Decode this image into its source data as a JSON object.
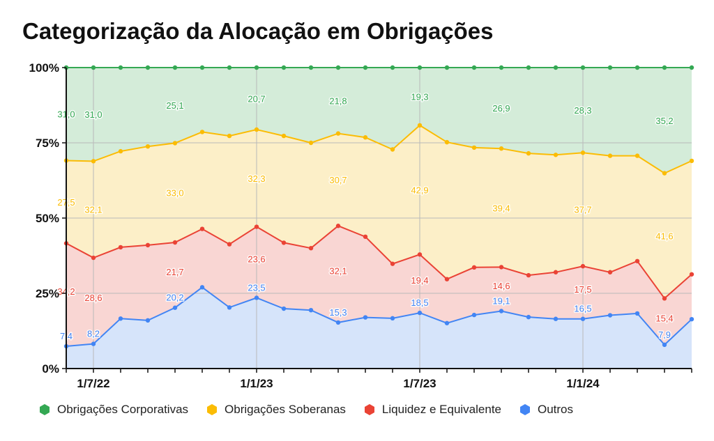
{
  "chart_data": {
    "type": "area",
    "stacked": true,
    "normalized": true,
    "title": "Categorização da Alocação em Obrigações",
    "y_ticks": [
      "0%",
      "25%",
      "50%",
      "75%",
      "100%"
    ],
    "ylim": [
      0,
      100
    ],
    "x_ticks": [
      {
        "label": "1/7/22",
        "index": 1
      },
      {
        "label": "1/1/23",
        "index": 7
      },
      {
        "label": "1/7/23",
        "index": 13
      },
      {
        "label": "1/1/24",
        "index": 19
      }
    ],
    "grid": true,
    "legend_position": "bottom",
    "series": [
      {
        "name": "Outros",
        "color": "#4285F4",
        "fill": "#d6e4fa",
        "values": [
          7.4,
          8.2,
          16.6,
          16.0,
          20.2,
          27.0,
          20.3,
          23.5,
          19.9,
          19.4,
          15.3,
          17.0,
          16.7,
          18.5,
          15.1,
          17.8,
          19.1,
          17.1,
          16.5,
          16.5,
          17.7,
          18.3,
          7.9,
          16.4
        ],
        "labels": {
          "0": "7,4",
          "1": "8,2",
          "4": "20,2",
          "7": "23,5",
          "10": "15,3",
          "13": "18,5",
          "16": "19,1",
          "19": "16,5",
          "22": "7,9"
        }
      },
      {
        "name": "Liquidez e Equivalente",
        "color": "#EA4335",
        "fill": "#f9d6d3",
        "values": [
          34.2,
          28.6,
          23.7,
          25.0,
          21.7,
          19.4,
          21.0,
          23.6,
          21.9,
          20.6,
          32.1,
          26.8,
          18.1,
          19.4,
          14.6,
          15.8,
          14.6,
          13.9,
          15.5,
          17.5,
          14.3,
          17.4,
          15.4,
          14.9
        ],
        "labels": {
          "0": "34,2",
          "1": "28,6",
          "4": "21,7",
          "7": "23,6",
          "10": "32,1",
          "13": "19,4",
          "16": "14,6",
          "19": "17,5",
          "22": "15,4"
        }
      },
      {
        "name": "Obrigações Soberanas",
        "color": "#FBBC04",
        "fill": "#fcefc8",
        "values": [
          27.5,
          32.1,
          31.9,
          32.8,
          33.0,
          32.2,
          36.0,
          32.3,
          35.5,
          35.0,
          30.7,
          33.0,
          38.0,
          42.9,
          45.5,
          39.8,
          39.4,
          40.5,
          39.0,
          37.7,
          38.7,
          35.0,
          41.6,
          37.7
        ],
        "labels": {
          "0": "27,5",
          "1": "32,1",
          "4": "33,0",
          "7": "32,3",
          "10": "30,7",
          "13": "42,9",
          "16": "39,4",
          "19": "37,7",
          "22": "41,6"
        }
      },
      {
        "name": "Obrigações Corporativas",
        "color": "#34A853",
        "fill": "#d4ecd9",
        "values": [
          31.0,
          31.0,
          27.8,
          26.2,
          25.1,
          21.4,
          22.7,
          20.7,
          22.7,
          25.0,
          21.8,
          23.2,
          27.2,
          19.3,
          24.8,
          26.6,
          26.9,
          28.5,
          29.0,
          28.3,
          29.3,
          29.3,
          35.2,
          31.0
        ],
        "labels": {
          "0": "31,0",
          "1": "31,0",
          "4": "25,1",
          "7": "20,7",
          "10": "21,8",
          "13": "19,3",
          "16": "26,9",
          "19": "28,3",
          "22": "35,2"
        }
      }
    ]
  },
  "legend": [
    {
      "name": "Obrigações Corporativas",
      "color": "#34A853"
    },
    {
      "name": "Obrigações Soberanas",
      "color": "#FBBC04"
    },
    {
      "name": "Liquidez e Equivalente",
      "color": "#EA4335"
    },
    {
      "name": "Outros",
      "color": "#4285F4"
    }
  ]
}
